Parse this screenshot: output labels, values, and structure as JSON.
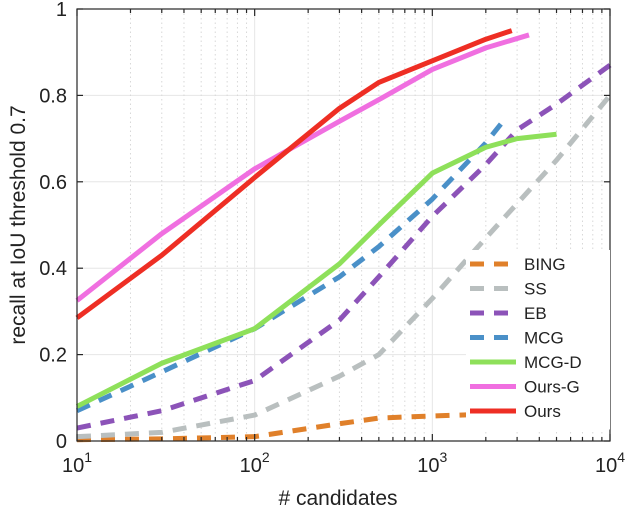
{
  "chart_data": {
    "type": "line",
    "xlabel": "# candidates",
    "ylabel": "recall at IoU threshold 0.7",
    "xscale": "log",
    "xlim": [
      10,
      10000
    ],
    "ylim": [
      0,
      1
    ],
    "x_ticks": [
      {
        "base": "10",
        "exp": "1",
        "value": 10
      },
      {
        "base": "10",
        "exp": "2",
        "value": 100
      },
      {
        "base": "10",
        "exp": "3",
        "value": 1000
      },
      {
        "base": "10",
        "exp": "4",
        "value": 10000
      }
    ],
    "y_ticks": [
      {
        "label": "0",
        "value": 0
      },
      {
        "label": "0.2",
        "value": 0.2
      },
      {
        "label": "0.4",
        "value": 0.4
      },
      {
        "label": "0.6",
        "value": 0.6
      },
      {
        "label": "0.8",
        "value": 0.8
      },
      {
        "label": "1",
        "value": 1
      }
    ],
    "grid": true,
    "legend_position": "bottom-right",
    "series": [
      {
        "name": "BING",
        "color": "#e0802a",
        "dash": true,
        "x": [
          10,
          30,
          100,
          300,
          500,
          1000,
          2000,
          3000
        ],
        "y": [
          0.003,
          0.005,
          0.01,
          0.04,
          0.053,
          0.058,
          0.062,
          0.063
        ]
      },
      {
        "name": "SS",
        "color": "#b9bfbf",
        "dash": true,
        "x": [
          10,
          30,
          100,
          300,
          500,
          1000,
          2000,
          5000,
          10000
        ],
        "y": [
          0.01,
          0.02,
          0.06,
          0.15,
          0.2,
          0.33,
          0.47,
          0.65,
          0.8
        ]
      },
      {
        "name": "EB",
        "color": "#8c53b8",
        "dash": true,
        "x": [
          10,
          30,
          100,
          300,
          500,
          1000,
          2000,
          3000,
          5000,
          10000
        ],
        "y": [
          0.03,
          0.07,
          0.14,
          0.28,
          0.38,
          0.52,
          0.64,
          0.72,
          0.78,
          0.87
        ]
      },
      {
        "name": "MCG",
        "color": "#4a90c8",
        "dash": true,
        "x": [
          10,
          30,
          100,
          300,
          500,
          1000,
          2000,
          2500
        ],
        "y": [
          0.07,
          0.16,
          0.26,
          0.38,
          0.45,
          0.56,
          0.69,
          0.74
        ]
      },
      {
        "name": "MCG-D",
        "color": "#8ee05a",
        "dash": false,
        "x": [
          10,
          30,
          100,
          300,
          500,
          1000,
          2000,
          3000,
          5000
        ],
        "y": [
          0.08,
          0.18,
          0.26,
          0.41,
          0.5,
          0.62,
          0.68,
          0.7,
          0.71
        ]
      },
      {
        "name": "Ours-G",
        "color": "#f06fe0",
        "dash": false,
        "x": [
          10,
          30,
          100,
          300,
          500,
          1000,
          2000,
          3500
        ],
        "y": [
          0.325,
          0.48,
          0.63,
          0.74,
          0.79,
          0.86,
          0.91,
          0.94
        ]
      },
      {
        "name": "Ours",
        "color": "#ee2e24",
        "dash": false,
        "x": [
          10,
          30,
          100,
          300,
          500,
          1000,
          2000,
          2800
        ],
        "y": [
          0.285,
          0.43,
          0.61,
          0.77,
          0.83,
          0.88,
          0.93,
          0.95
        ]
      }
    ]
  }
}
